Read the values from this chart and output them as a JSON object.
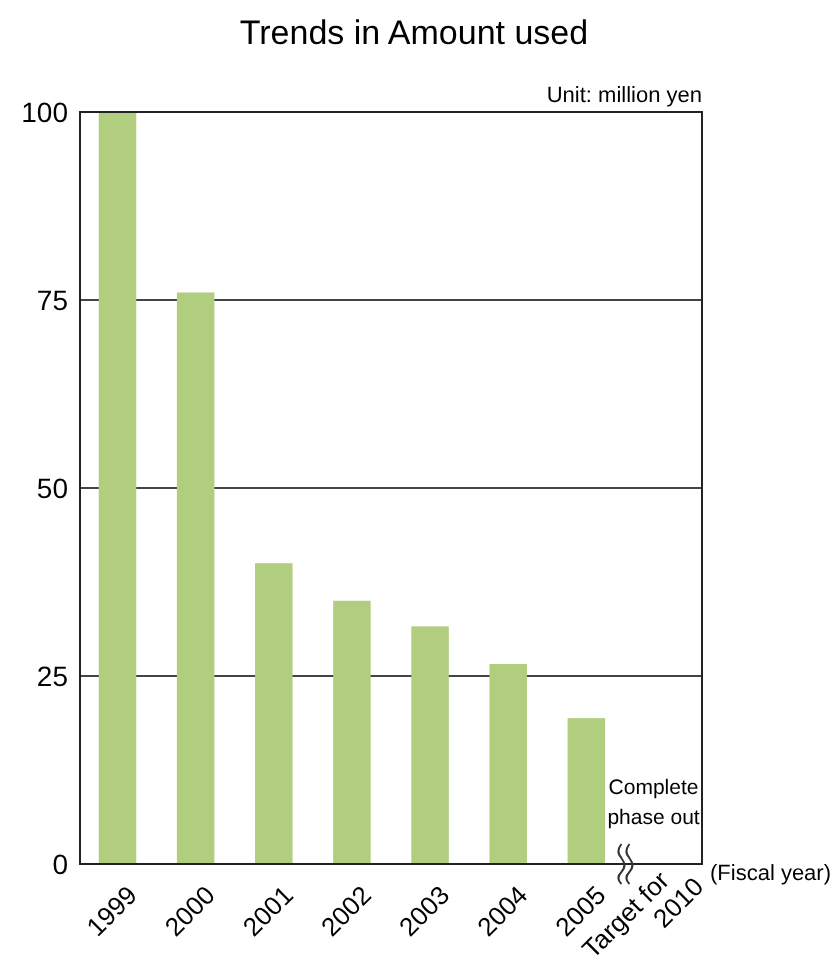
{
  "chart_data": {
    "type": "bar",
    "title": "Trends in Amount used",
    "categories": [
      "1999",
      "2000",
      "2001",
      "2002",
      "2003",
      "2004",
      "2005",
      "Target for 2010"
    ],
    "values": [
      100,
      76,
      40,
      35,
      31.6,
      26.6,
      19.4,
      0
    ],
    "color": "#b1cd7e",
    "xlabel": "(Fiscal year)",
    "ylim": [
      0,
      100
    ],
    "yticks": [
      0,
      25,
      50,
      75,
      100
    ],
    "grid": "y",
    "annotations": [
      "Unit: million yen",
      {
        "text": "Complete phase out",
        "x": "Target for 2010",
        "y": 0
      }
    ]
  }
}
